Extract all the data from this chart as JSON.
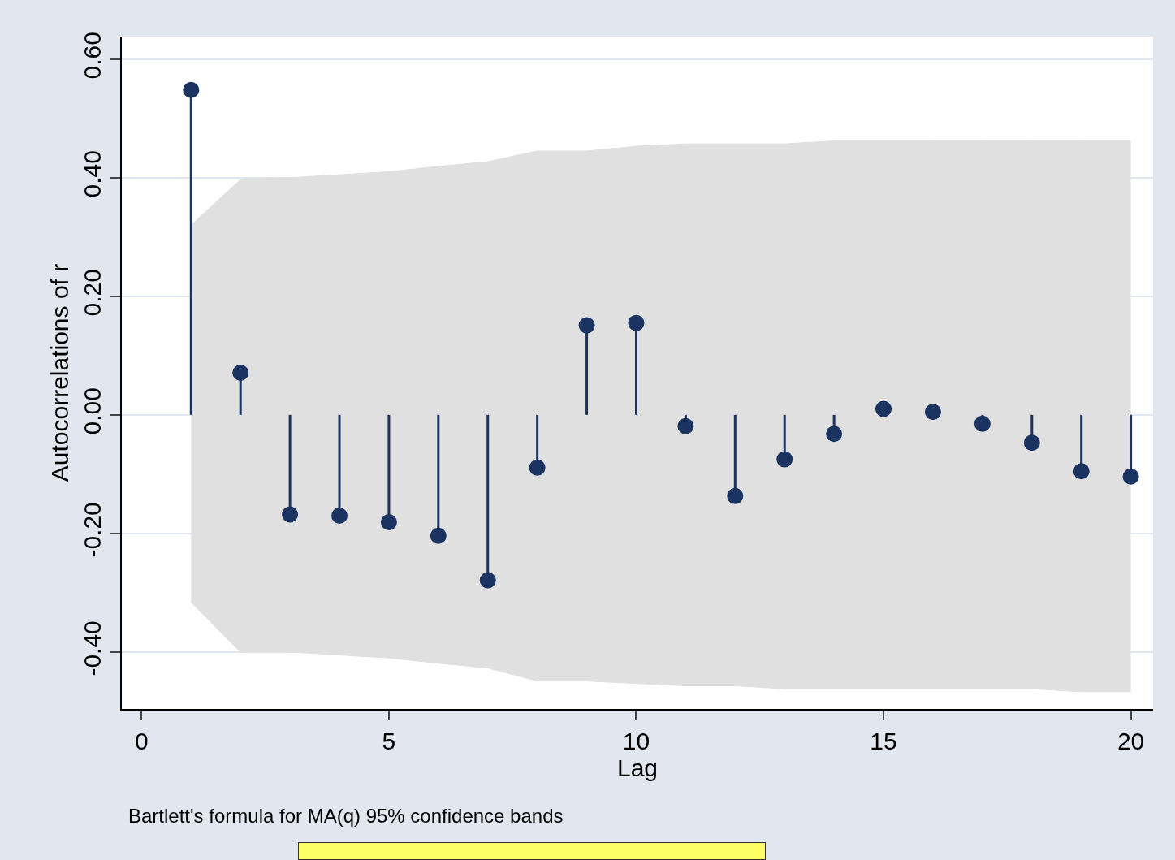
{
  "chart_data": {
    "type": "lollipop",
    "xlabel": "Lag",
    "ylabel": "Autocorrelations of r",
    "annotations": [
      "Bartlett's formula for MA(q) 95% confidence bands"
    ],
    "x": [
      1,
      2,
      3,
      4,
      5,
      6,
      7,
      8,
      9,
      10,
      11,
      12,
      13,
      14,
      15,
      16,
      17,
      18,
      19,
      20
    ],
    "series": [
      {
        "type": "area",
        "color": "#e0e0e0",
        "marker": "none",
        "values": [
          0.32,
          0.397,
          0.4,
          0.405,
          0.41,
          0.419,
          0.427,
          0.445,
          0.445,
          0.453,
          0.457,
          0.457,
          0.457,
          0.462,
          0.462,
          0.462,
          0.462,
          0.462,
          0.462,
          0.462
        ]
      },
      {
        "type": "area",
        "color": "#e0e0e0",
        "marker": "none",
        "values": [
          -0.316,
          -0.4,
          -0.4,
          -0.405,
          -0.41,
          -0.419,
          -0.427,
          -0.449,
          -0.449,
          -0.453,
          -0.457,
          -0.457,
          -0.462,
          -0.462,
          -0.462,
          -0.462,
          -0.462,
          -0.462,
          -0.467,
          -0.467
        ]
      },
      {
        "color": "#1a3361",
        "values": [
          0.548,
          0.071,
          -0.168,
          -0.17,
          -0.181,
          -0.204,
          -0.279,
          -0.089,
          0.151,
          0.155,
          -0.019,
          -0.137,
          -0.075,
          -0.032,
          0.01,
          0.005,
          -0.015,
          -0.047,
          -0.095,
          -0.104
        ]
      }
    ],
    "xlim": [
      -0.4,
      20.45
    ],
    "xticks": [
      0,
      5,
      10,
      15,
      20
    ],
    "ylim": [
      -0.496,
      0.638
    ],
    "yticks": [
      {
        "value": -0.4,
        "label": "-0.40"
      },
      {
        "value": -0.2,
        "label": "-0.20"
      },
      {
        "value": 0,
        "label": "0.00"
      },
      {
        "value": 0.2,
        "label": "0.20"
      },
      {
        "value": 0.4,
        "label": "0.40"
      },
      {
        "value": 0.6,
        "label": "0.60"
      }
    ],
    "grid": "y",
    "marker": "circle"
  }
}
